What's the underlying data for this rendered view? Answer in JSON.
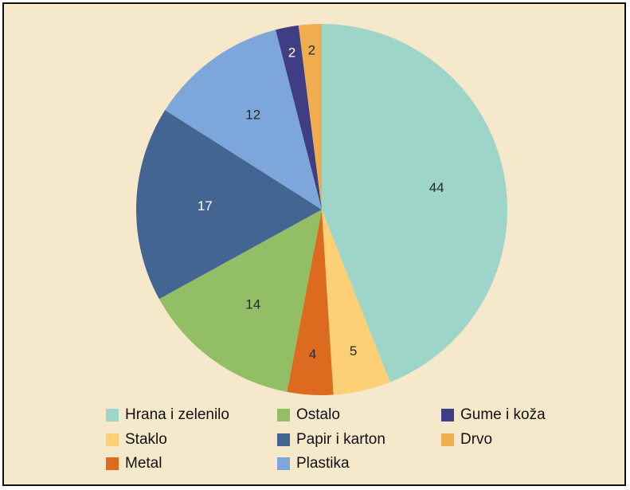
{
  "chart_data": {
    "type": "pie",
    "slices": [
      {
        "label": "Hrana i zelenilo",
        "value": 44,
        "color": "#9dd5c9"
      },
      {
        "label": "Staklo",
        "value": 5,
        "color": "#fdd076"
      },
      {
        "label": "Metal",
        "value": 4,
        "color": "#dd6b1f"
      },
      {
        "label": "Ostalo",
        "value": 14,
        "color": "#92bf65"
      },
      {
        "label": "Papir i karton",
        "value": 17,
        "color": "#426592"
      },
      {
        "label": "Plastika",
        "value": 12,
        "color": "#7da7db"
      },
      {
        "label": "Gume i koža",
        "value": 2,
        "color": "#3f3e84"
      },
      {
        "label": "Drvo",
        "value": 2,
        "color": "#f0ad4f"
      }
    ],
    "legend": {
      "placement": "bottom",
      "columns": [
        [
          "Hrana i zelenilo",
          "Staklo",
          "Metal"
        ],
        [
          "Ostalo",
          "Papir i karton",
          "Plastika"
        ],
        [
          "Gume i koža",
          "Drvo"
        ]
      ]
    },
    "background": "#f5e8cb"
  }
}
